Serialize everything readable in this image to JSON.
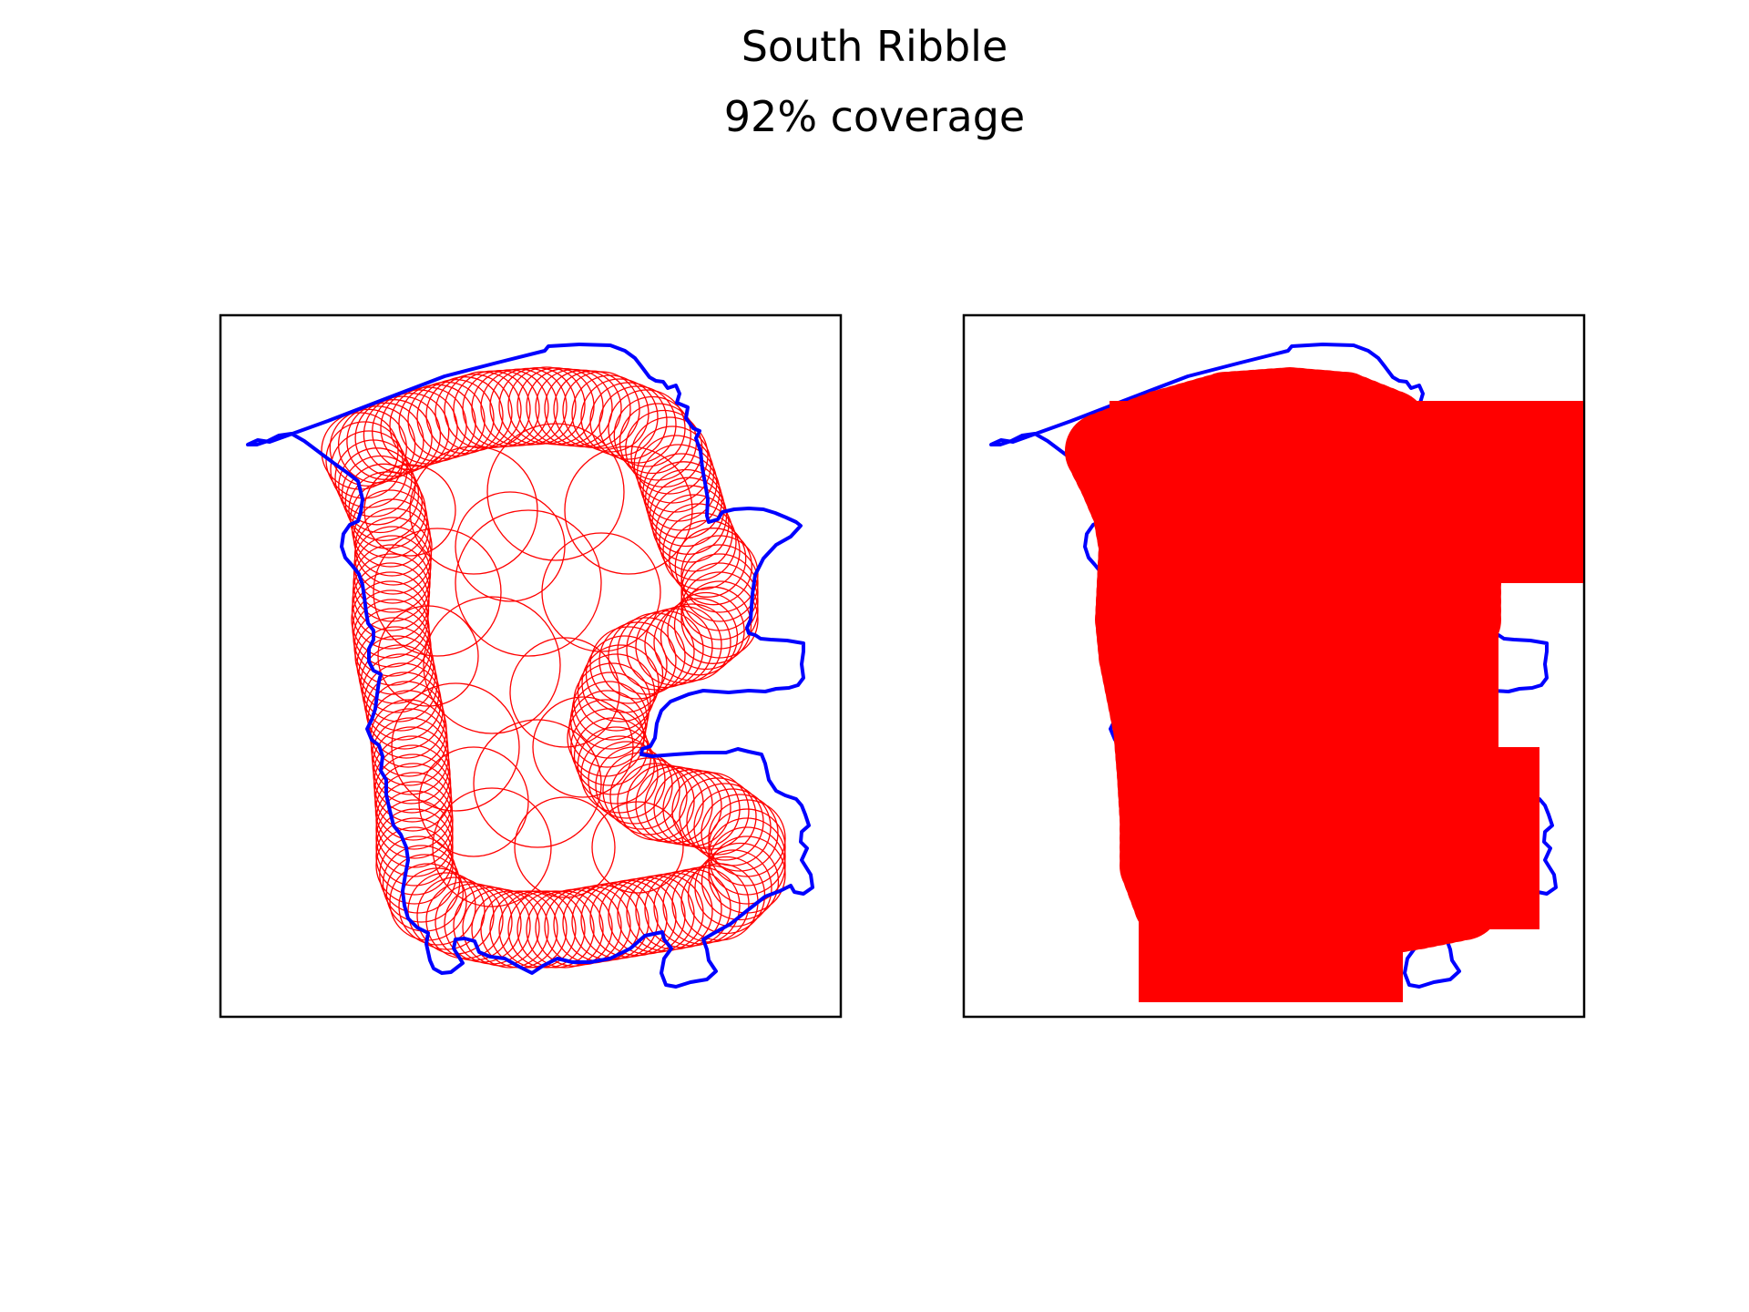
{
  "figure": {
    "title": "South Ribble",
    "subtitle": "92% coverage"
  },
  "colors": {
    "boundary": "#0000ff",
    "circles": "#ff0000",
    "frame": "#000000",
    "background": "#ffffff"
  },
  "panels": [
    {
      "name": "circle-outlines",
      "style": "outline"
    },
    {
      "name": "coverage-fill",
      "style": "filled"
    }
  ]
}
